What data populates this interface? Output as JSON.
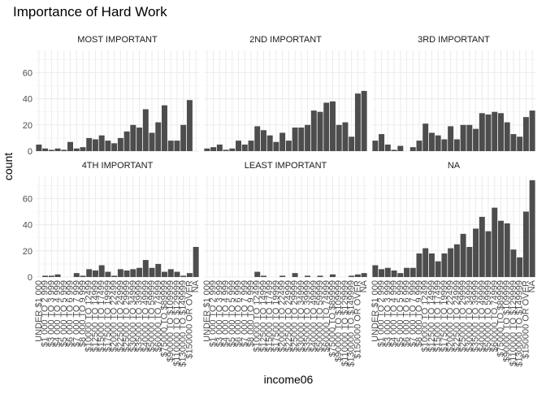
{
  "chart_data": {
    "type": "bar",
    "title": "Importance of Hard Work",
    "xlabel": "income06",
    "ylabel": "count",
    "ylim": [
      0,
      77
    ],
    "yticks": [
      0,
      20,
      40,
      60
    ],
    "grid": true,
    "facet_layout": "2 rows x 3 columns",
    "bar_color": "#4d4d4d",
    "categories": [
      "UNDER $1 000",
      "$1 000 TO 2 999",
      "$3 000 TO 3 999",
      "$4 000 TO 4 999",
      "$5 000 TO 5 999",
      "$6 000 TO 6 999",
      "$7 000 TO 7 999",
      "$8 000 TO 9 999",
      "$10000 TO 12499",
      "$12500 TO 14999",
      "$15000 TO 17499",
      "$17500 TO 19999",
      "$20000 TO 22499",
      "$22500 TO 24999",
      "$25000 TO 29999",
      "$30000 TO 34999",
      "$35000 TO 39999",
      "$40000 TO 49999",
      "$50000 TO 59999",
      "$60000 TO 74999",
      "$75000 TO $89999",
      "$90000 TO $109999",
      "$110000 TO $129999",
      "$130000 TO $149999",
      "$150000 OR OVER",
      "NA"
    ],
    "panels": [
      {
        "label": "MOST IMPORTANT",
        "values": [
          5,
          2,
          1,
          2,
          1,
          7,
          2,
          3,
          10,
          9,
          12,
          8,
          6,
          10,
          15,
          20,
          18,
          32,
          14,
          22,
          35,
          8,
          8,
          20,
          39,
          null
        ]
      },
      {
        "label": "2ND IMPORTANT",
        "values": [
          2,
          3,
          5,
          1,
          2,
          8,
          5,
          8,
          19,
          16,
          12,
          7,
          14,
          8,
          18,
          18,
          20,
          31,
          30,
          37,
          38,
          20,
          22,
          11,
          44,
          46
        ]
      },
      {
        "label": "3RD IMPORTANT",
        "values": [
          8,
          13,
          5,
          1,
          4,
          0,
          3,
          8,
          21,
          14,
          12,
          9,
          19,
          9,
          20,
          20,
          17,
          29,
          28,
          30,
          29,
          22,
          13,
          11,
          26,
          31
        ]
      },
      {
        "label": "4TH IMPORTANT",
        "values": [
          0,
          1,
          1,
          2,
          0,
          0,
          3,
          1,
          6,
          5,
          9,
          4,
          1,
          6,
          5,
          6,
          7,
          13,
          7,
          10,
          4,
          6,
          4,
          1,
          3,
          23
        ]
      },
      {
        "label": "LEAST IMPORTANT",
        "values": [
          0,
          0,
          0,
          0,
          0,
          0,
          0,
          0,
          4,
          1,
          0,
          0,
          1,
          0,
          3,
          0,
          1,
          0,
          1,
          0,
          2,
          0,
          0,
          1,
          2,
          3
        ]
      },
      {
        "label": "NA",
        "values": [
          9,
          6,
          7,
          5,
          3,
          7,
          7,
          18,
          22,
          18,
          12,
          18,
          22,
          25,
          33,
          23,
          37,
          46,
          35,
          53,
          43,
          41,
          21,
          15,
          50,
          74
        ]
      }
    ]
  }
}
